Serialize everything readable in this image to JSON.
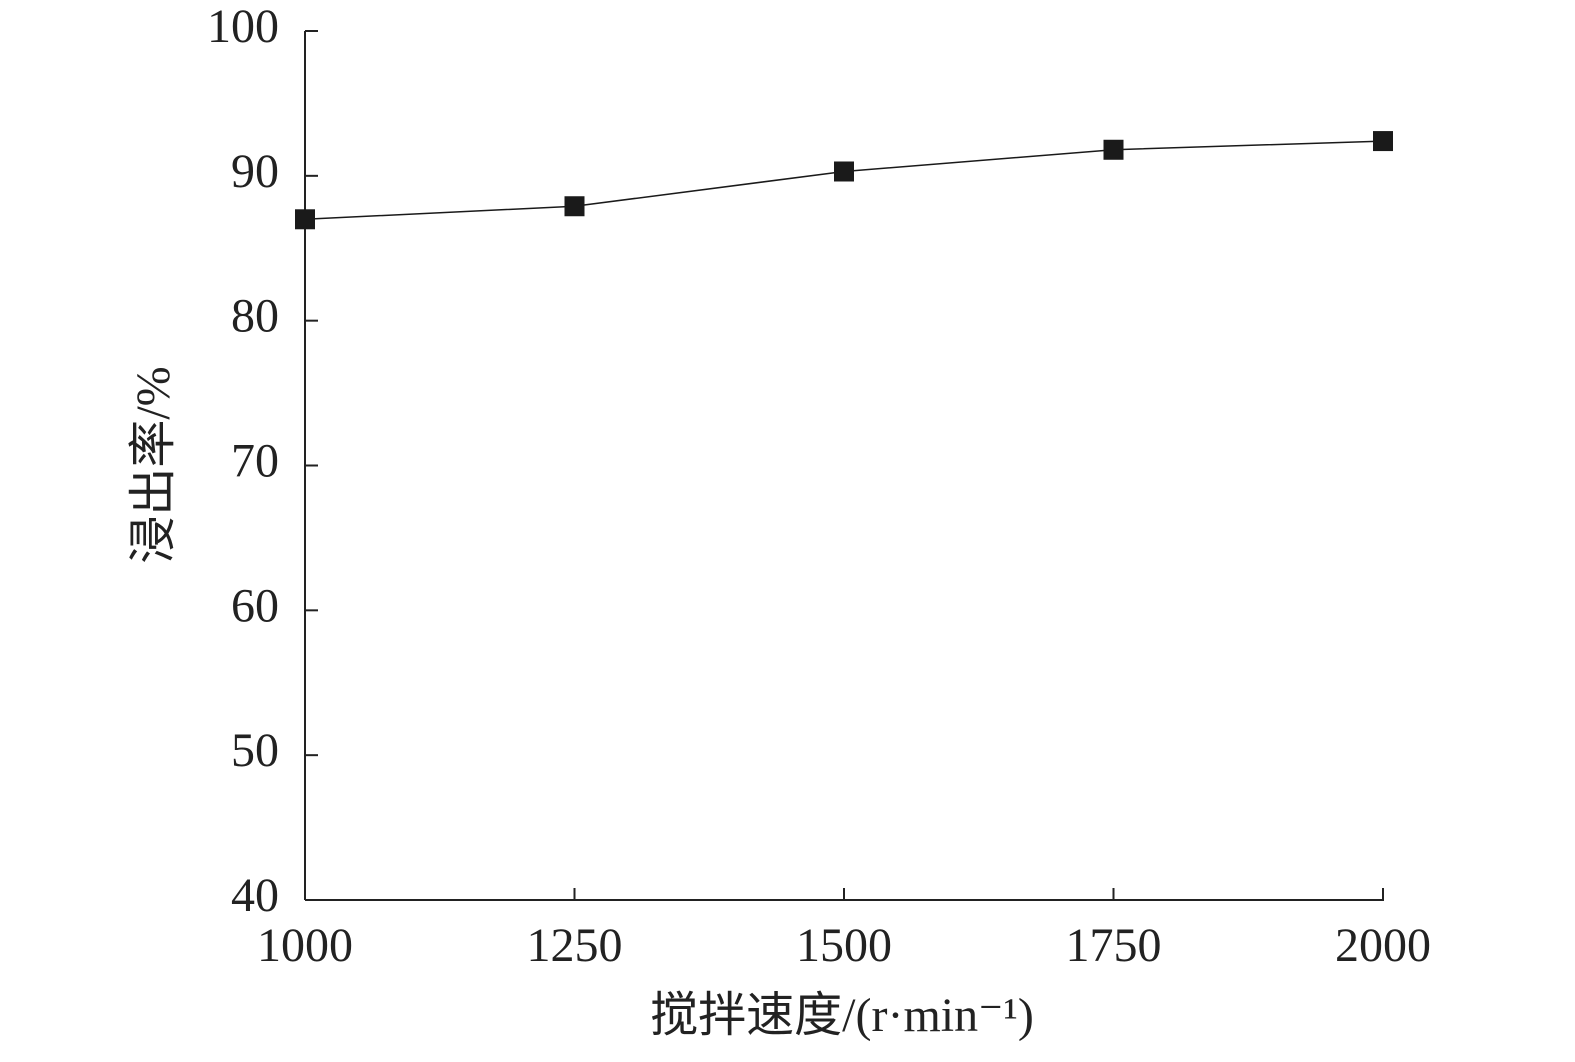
{
  "chart_data": {
    "type": "line",
    "xlabel": "搅拌速度/(r·min⁻¹)",
    "ylabel": "浸出率/%",
    "x": [
      1000,
      1250,
      1500,
      1750,
      2000
    ],
    "series": [
      {
        "color": "#1a1a1a",
        "values": [
          87.0,
          87.9,
          90.3,
          91.8,
          92.4
        ]
      }
    ],
    "xlim": [
      1000,
      2000
    ],
    "xticks": [
      1000,
      1250,
      1500,
      1750,
      2000
    ],
    "ylim": [
      40,
      100
    ],
    "yticks": [
      40,
      50,
      60,
      70,
      80,
      90,
      100
    ],
    "marker": "square",
    "grid": false
  }
}
